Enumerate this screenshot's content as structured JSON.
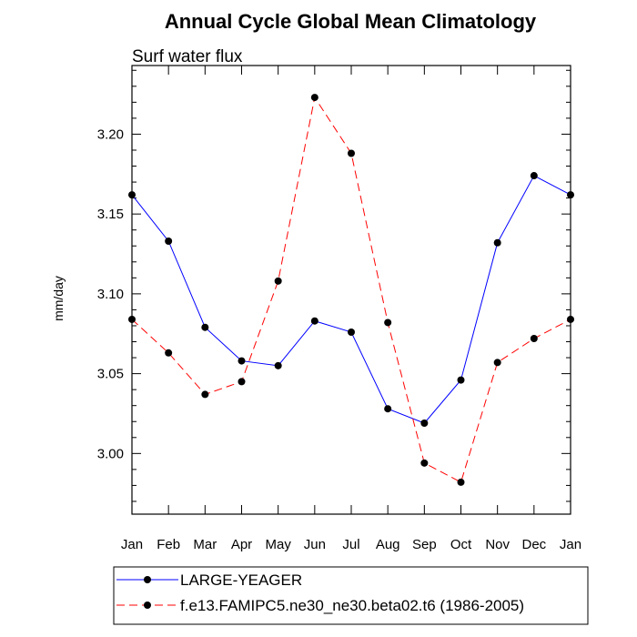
{
  "chart_data": {
    "type": "line",
    "title": "Annual Cycle Global Mean Climatology",
    "subtitle": "Surf water flux",
    "xlabel": "",
    "ylabel": "mm/day",
    "categories": [
      "Jan",
      "Feb",
      "Mar",
      "Apr",
      "May",
      "Jun",
      "Jul",
      "Aug",
      "Sep",
      "Oct",
      "Nov",
      "Dec",
      "Jan"
    ],
    "ylim": [
      2.962,
      3.243
    ],
    "yticks": [
      3.0,
      3.05,
      3.1,
      3.15,
      3.2
    ],
    "ytick_labels": [
      "3.00",
      "3.05",
      "3.10",
      "3.15",
      "3.20"
    ],
    "legend_position": "bottom",
    "series": [
      {
        "name": "LARGE-YEAGER",
        "color": "#0000ff",
        "style": "solid",
        "values": [
          3.162,
          3.133,
          3.079,
          3.058,
          3.055,
          3.083,
          3.076,
          3.028,
          3.019,
          3.046,
          3.132,
          3.174,
          3.162
        ]
      },
      {
        "name": "f.e13.FAMIPC5.ne30_ne30.beta02.t6 (1986-2005)",
        "color": "#ff0000",
        "style": "dashed",
        "values": [
          3.084,
          3.063,
          3.037,
          3.045,
          3.108,
          3.223,
          3.188,
          3.082,
          2.994,
          2.982,
          3.057,
          3.072,
          3.084
        ]
      }
    ]
  }
}
